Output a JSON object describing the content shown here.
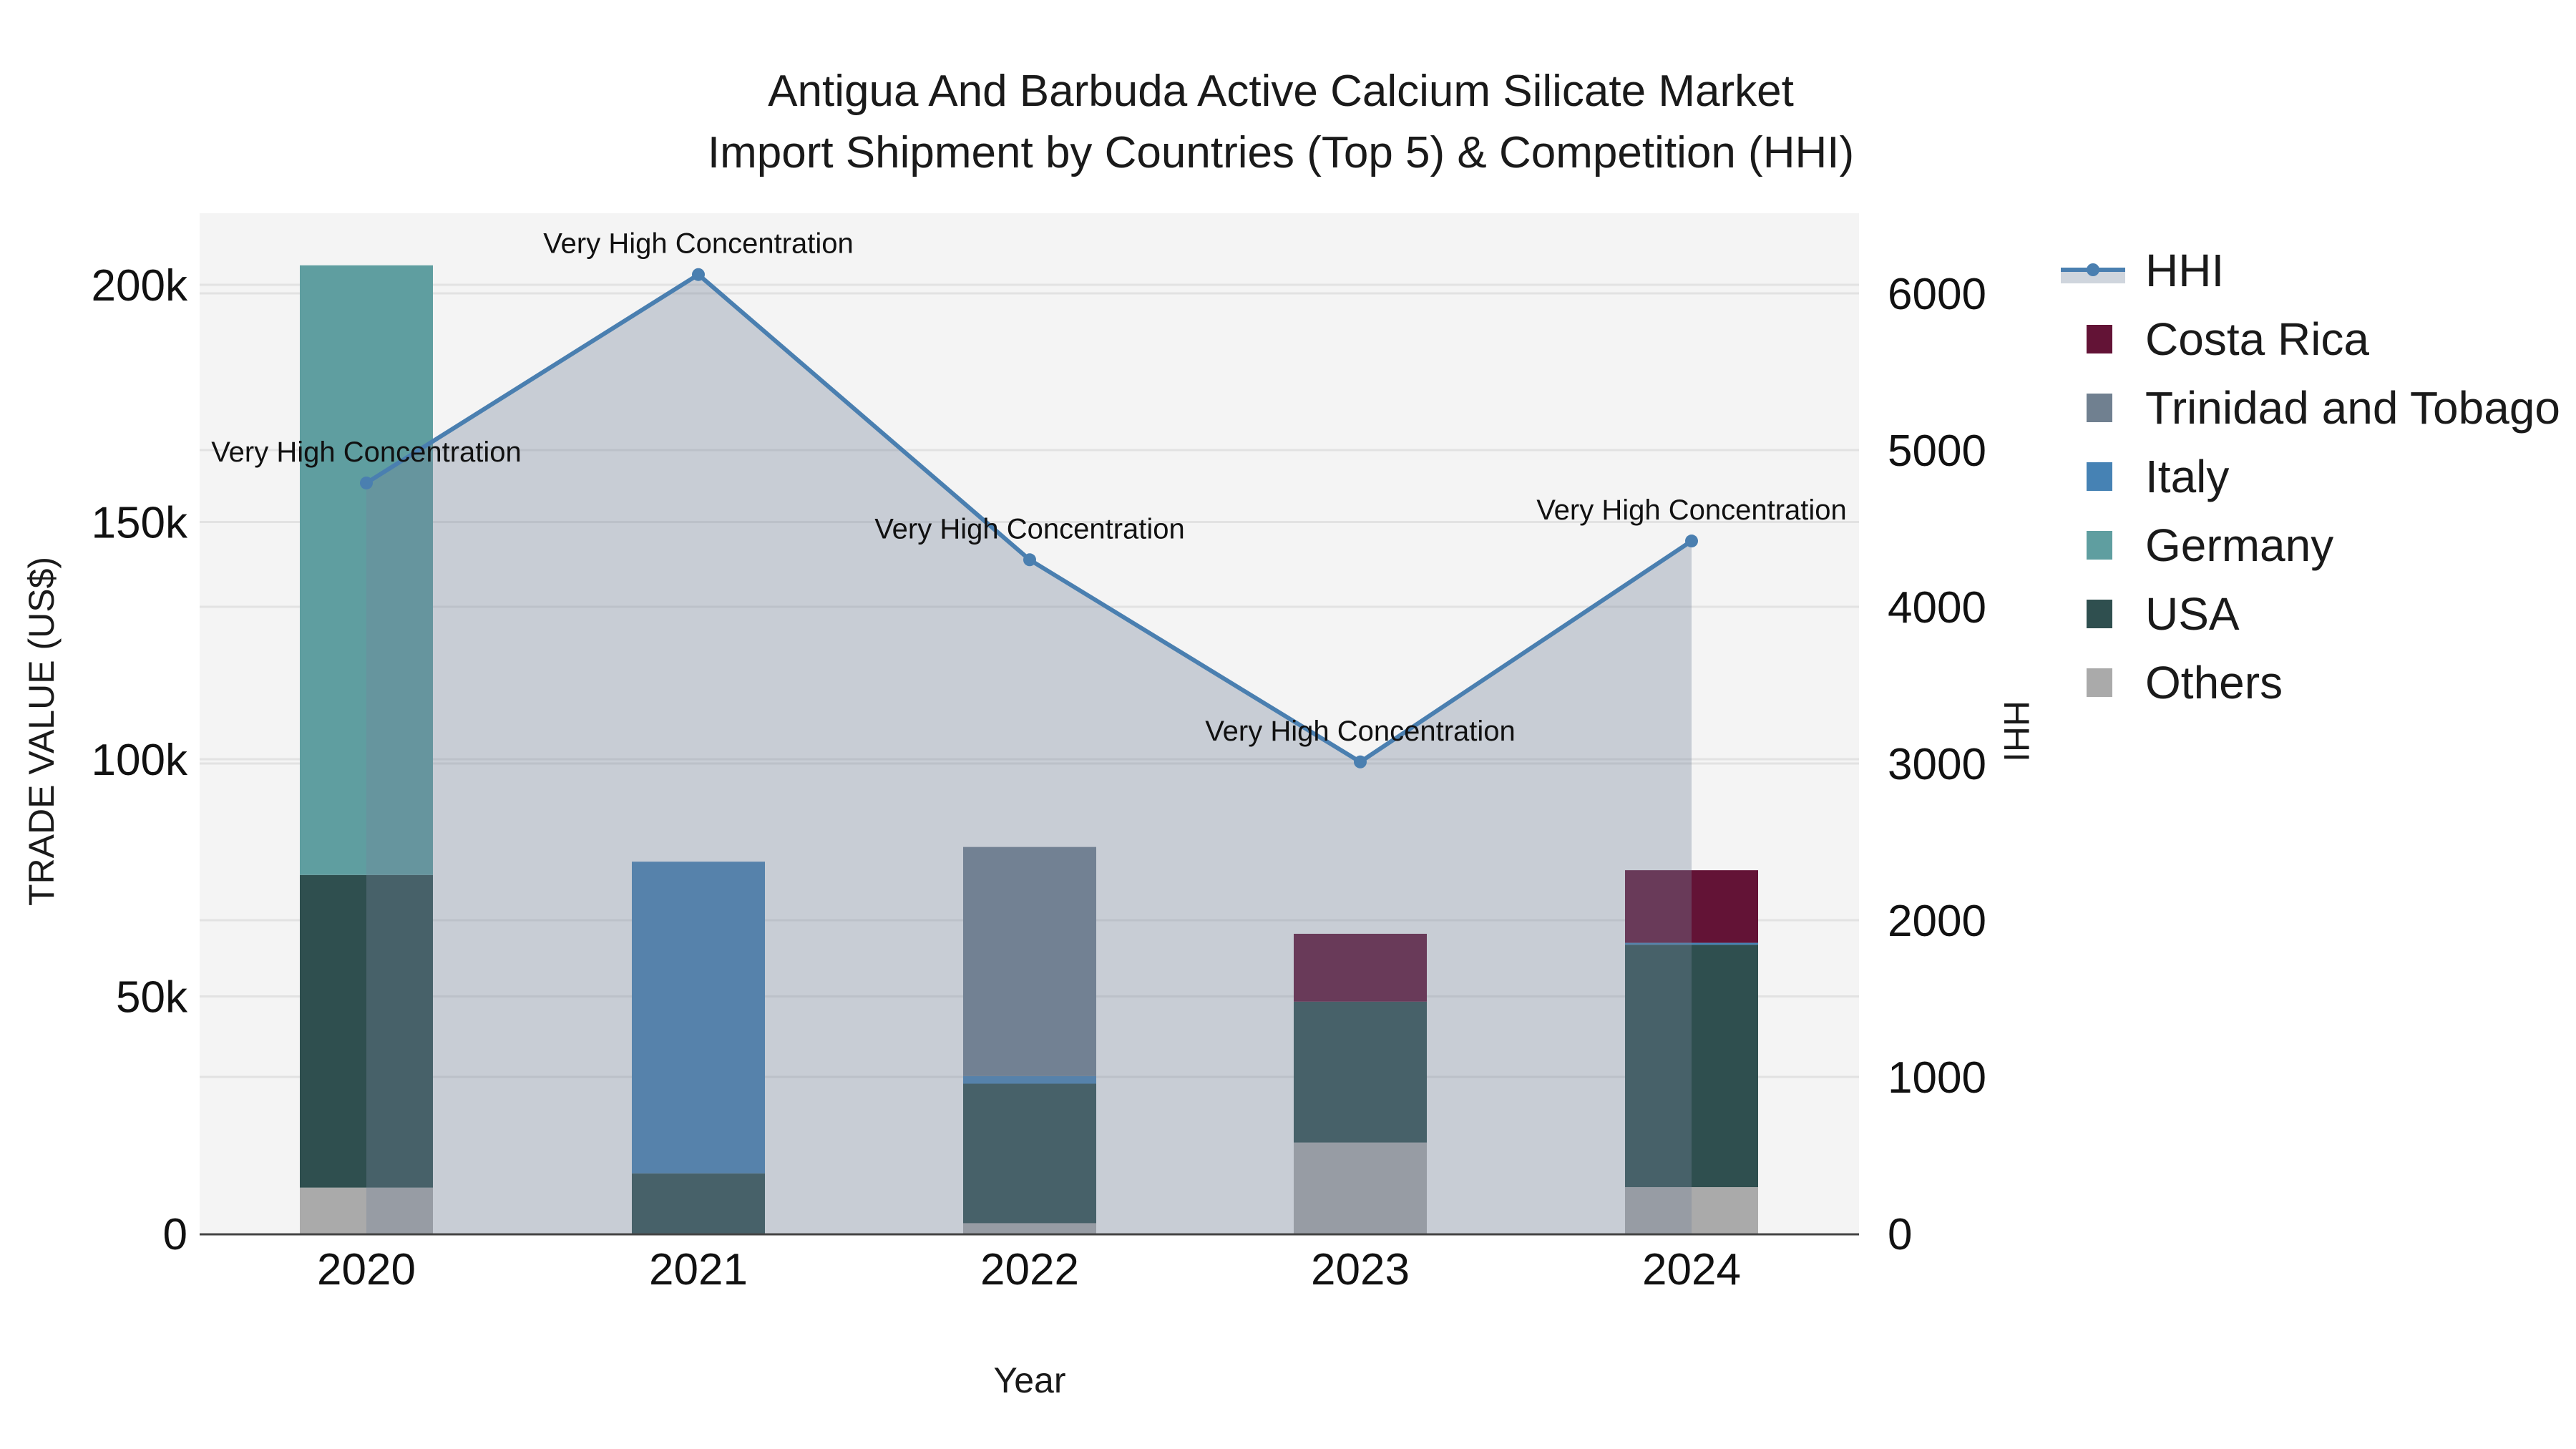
{
  "title": {
    "line1": "Antigua And Barbuda Active Calcium Silicate Market",
    "line2": "Import Shipment by Countries (Top 5) & Competition (HHI)"
  },
  "axes": {
    "x_title": "Year",
    "y_title": "TRADE VALUE (US$)",
    "y2_title": "HHI",
    "y_ticks": [
      {
        "value": 0,
        "label": "0"
      },
      {
        "value": 50000,
        "label": "50k"
      },
      {
        "value": 100000,
        "label": "100k"
      },
      {
        "value": 150000,
        "label": "150k"
      },
      {
        "value": 200000,
        "label": "200k"
      }
    ],
    "y2_ticks": [
      {
        "value": 0,
        "label": "0"
      },
      {
        "value": 1000,
        "label": "1000"
      },
      {
        "value": 2000,
        "label": "2000"
      },
      {
        "value": 3000,
        "label": "3000"
      },
      {
        "value": 4000,
        "label": "4000"
      },
      {
        "value": 5000,
        "label": "5000"
      },
      {
        "value": 6000,
        "label": "6000"
      }
    ]
  },
  "legend": [
    {
      "name": "HHI",
      "type": "line",
      "color": "#4a7fb0"
    },
    {
      "name": "Costa Rica",
      "type": "bar",
      "color": "#631336"
    },
    {
      "name": "Trinidad and Tobago",
      "type": "bar",
      "color": "#708090"
    },
    {
      "name": "Italy",
      "type": "bar",
      "color": "#4682b4"
    },
    {
      "name": "Germany",
      "type": "bar",
      "color": "#5f9ea0"
    },
    {
      "name": "USA",
      "type": "bar",
      "color": "#2f4f4f"
    },
    {
      "name": "Others",
      "type": "bar",
      "color": "#aaaaaa"
    }
  ],
  "chart_data": {
    "type": "bar",
    "title": "Antigua And Barbuda Active Calcium Silicate Market Import Shipment by Countries (Top 5) & Competition (HHI)",
    "xlabel": "Year",
    "ylabel": "TRADE VALUE (US$)",
    "y2label": "HHI",
    "categories": [
      "2020",
      "2021",
      "2022",
      "2023",
      "2024"
    ],
    "stacked": true,
    "ylim": [
      0,
      215000
    ],
    "y2lim": [
      0,
      6500
    ],
    "grid": true,
    "legend_position": "right",
    "series": [
      {
        "name": "Others",
        "color": "#aaaaaa",
        "values": [
          9700,
          0,
          2200,
          19200,
          9800
        ]
      },
      {
        "name": "USA",
        "color": "#2f4f4f",
        "values": [
          65900,
          12700,
          29400,
          29700,
          51100
        ]
      },
      {
        "name": "Germany",
        "color": "#5f9ea0",
        "values": [
          128500,
          0,
          0,
          0,
          0
        ]
      },
      {
        "name": "Italy",
        "color": "#4682b4",
        "values": [
          0,
          65700,
          1600,
          0,
          400
        ]
      },
      {
        "name": "Trinidad and Tobago",
        "color": "#708090",
        "values": [
          0,
          0,
          48300,
          0,
          0
        ]
      },
      {
        "name": "Costa Rica",
        "color": "#631336",
        "values": [
          0,
          0,
          0,
          14300,
          15300
        ]
      }
    ],
    "line_series": {
      "name": "HHI",
      "axis": "y2",
      "color": "#4a7fb0",
      "fill": "tozeroy",
      "values": [
        4790,
        6120,
        4300,
        3010,
        4420
      ],
      "annotations": [
        "Very High Concentration",
        "Very High Concentration",
        "Very High Concentration",
        "Very High Concentration",
        "Very High Concentration"
      ]
    }
  }
}
